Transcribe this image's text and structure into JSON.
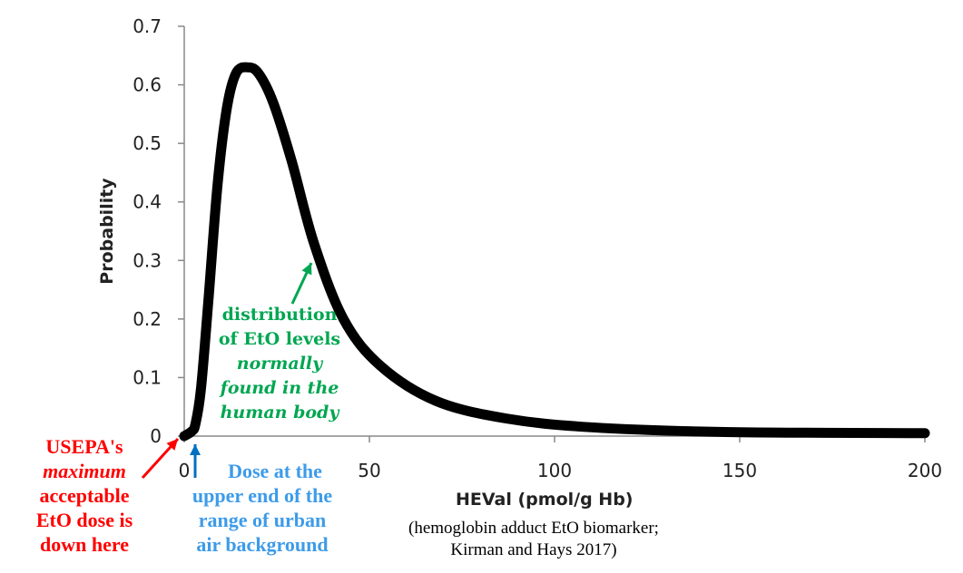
{
  "chart_data": {
    "type": "line",
    "title": "",
    "xlabel": "HEVal (pmol/g  Hb)",
    "xlabel_note": [
      "(hemoglobin adduct EtO biomarker;",
      "Kirman and Hays 2017)"
    ],
    "ylabel": "Probability",
    "xlim": [
      0,
      200
    ],
    "ylim": [
      0,
      0.7
    ],
    "xticks": [
      "0",
      "50",
      "100",
      "150",
      "200"
    ],
    "yticks": [
      "0",
      "0.1",
      "0.2",
      "0.3",
      "0.4",
      "0.5",
      "0.6",
      "0.7"
    ],
    "grid": false,
    "series": [
      {
        "color": "#000000",
        "x": [
          0,
          2,
          3,
          4.5,
          6.5,
          9,
          11.5,
          14,
          17,
          20,
          24,
          29,
          35,
          43,
          53,
          68,
          87,
          110,
          146,
          200
        ],
        "y": [
          0,
          0.008,
          0.02,
          0.08,
          0.23,
          0.43,
          0.56,
          0.62,
          0.63,
          0.62,
          0.57,
          0.47,
          0.33,
          0.2,
          0.12,
          0.06,
          0.03,
          0.015,
          0.007,
          0.005
        ]
      }
    ],
    "annotations": [
      {
        "lines": [
          "distribution",
          "of  EtO levels",
          "normally",
          "found in the",
          "human body"
        ],
        "color": "#00a651"
      },
      {
        "lines": [
          "USEPA's",
          "maximum",
          "acceptable",
          "EtO dose is",
          "down here"
        ],
        "color": "#ff0000",
        "arrow_color": "#ff0000"
      },
      {
        "lines": [
          "Dose at the",
          "upper end of the",
          "range of urban",
          "air background"
        ],
        "color": "#3d9be9",
        "arrow_color": "#0070c0"
      }
    ]
  }
}
